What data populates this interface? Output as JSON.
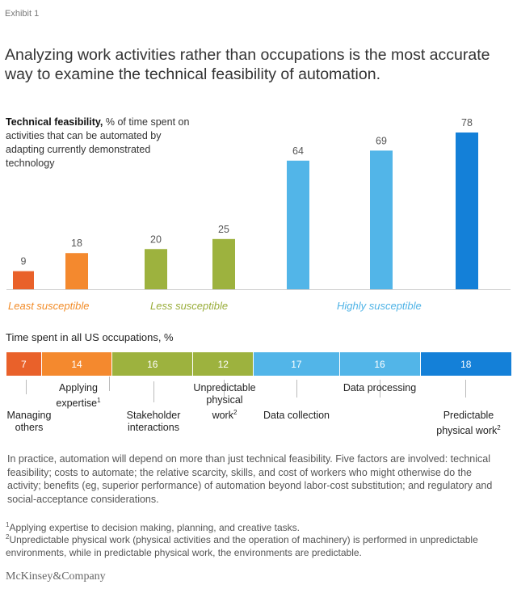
{
  "exhibit": "Exhibit 1",
  "headline": "Analyzing work activities rather than occupations is the most accurate way to examine the technical feasibility of automation.",
  "chart_desc": {
    "bold": "Technical feasibility,",
    "rest": " % of time spent on activities that can be automated by adapting currently demonstrated technology"
  },
  "colors": {
    "orange_dark": "#E9612A",
    "orange": "#F4892E",
    "green": "#9DB23E",
    "light_blue": "#52B5E8",
    "blue": "#1480D8",
    "least_label": "#F28C28",
    "less_label": "#99AD3A",
    "highly_label": "#4FB3E6"
  },
  "group_labels": {
    "least": "Least susceptible",
    "less": "Less susceptible",
    "highly": "Highly susceptible"
  },
  "occ_title": "Time spent in all US occupations, %",
  "chart_data": [
    {
      "type": "bar",
      "title": "Technical feasibility, % of time spent on activities that can be automated by adapting currently demonstrated technology",
      "categories": [
        "Managing others",
        "Applying expertise",
        "Stakeholder interactions",
        "Unpredictable physical work",
        "Data collection",
        "Data processing",
        "Predictable physical work"
      ],
      "values": [
        9,
        18,
        20,
        25,
        64,
        69,
        78
      ],
      "ylim": [
        0,
        80
      ],
      "grid": false
    },
    {
      "type": "bar",
      "orientation": "stacked-horizontal",
      "title": "Time spent in all US occupations, %",
      "categories": [
        "Managing others",
        "Applying expertise",
        "Stakeholder interactions",
        "Unpredictable physical work",
        "Data collection",
        "Data processing",
        "Predictable physical work"
      ],
      "values": [
        7,
        14,
        16,
        12,
        17,
        16,
        18
      ]
    }
  ],
  "segments": [
    {
      "value": "7",
      "color": "#E9612A"
    },
    {
      "value": "14",
      "color": "#F4892E"
    },
    {
      "value": "16",
      "color": "#9DB23E"
    },
    {
      "value": "12",
      "color": "#9DB23E"
    },
    {
      "value": "17",
      "color": "#52B5E8"
    },
    {
      "value": "16",
      "color": "#52B5E8"
    },
    {
      "value": "18",
      "color": "#1480D8"
    }
  ],
  "activity_labels": {
    "managing": "Managing\nothers",
    "expertise": "Applying\nexpertise",
    "stakeholder": "Stakeholder\ninteractions",
    "unpredictable": "Unpredictable\nphysical\nwork",
    "data_collection": "Data collection",
    "data_processing": "Data processing",
    "predictable": "Predictable\nphysical work"
  },
  "sup": {
    "one": "1",
    "two": "2"
  },
  "practice": "In practice, automation will depend on more than just technical feasibility. Five factors are involved: technical feasibility; costs to automate; the relative scarcity, skills, and cost of workers who might otherwise do the activity; benefits (eg, superior performance) of automation beyond labor-cost substitution; and regulatory and social-acceptance considerations.",
  "footnote1": "Applying expertise to decision making, planning, and creative tasks.",
  "footnote2": "Unpredictable physical work (physical activities and the operation of machinery) is performed in unpredictable environments, while in predictable physical work, the environments are predictable.",
  "brand": "McKinsey&Company"
}
